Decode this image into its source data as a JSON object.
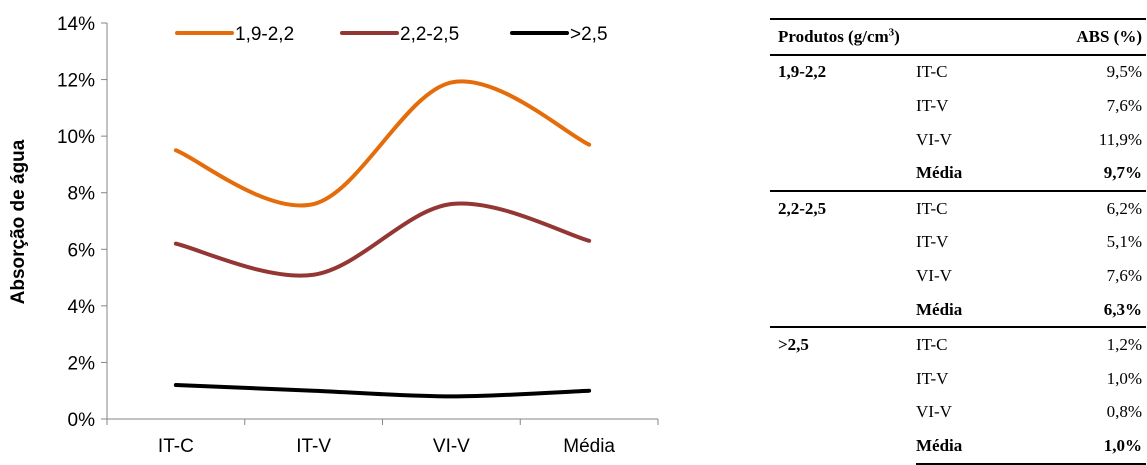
{
  "chart_data": {
    "type": "line",
    "categories": [
      "IT-C",
      "IT-V",
      "VI-V",
      "Média"
    ],
    "ylabel": "Absorção de água",
    "ylim": [
      0,
      14
    ],
    "yticks": [
      "0%",
      "2%",
      "4%",
      "6%",
      "8%",
      "10%",
      "12%",
      "14%"
    ],
    "ytick_values": [
      0,
      2,
      4,
      6,
      8,
      10,
      12,
      14
    ],
    "legend_position": "top",
    "grid": false,
    "smooth": true,
    "series": [
      {
        "name": "1,9-2,2",
        "values": [
          9.5,
          7.6,
          11.9,
          9.7
        ],
        "color": "#E46C0A"
      },
      {
        "name": "2,2-2,5",
        "values": [
          6.2,
          5.1,
          7.6,
          6.3
        ],
        "color": "#943634"
      },
      {
        "name": ">2,5",
        "values": [
          1.2,
          1.0,
          0.8,
          1.0
        ],
        "color": "#000000"
      }
    ]
  },
  "table": {
    "header_produtos": "Produtos (g/cm",
    "header_sup": "3",
    "header_close": ")",
    "header_abs": "ABS (%)",
    "groups": [
      {
        "label": "1,9-2,2",
        "rows": [
          {
            "item": "IT-C",
            "value": "9,5%"
          },
          {
            "item": "IT-V",
            "value": "7,6%"
          },
          {
            "item": "VI-V",
            "value": "11,9%"
          },
          {
            "item": "Média",
            "value": "9,7%"
          }
        ]
      },
      {
        "label": "2,2-2,5",
        "rows": [
          {
            "item": "IT-C",
            "value": "6,2%"
          },
          {
            "item": "IT-V",
            "value": "5,1%"
          },
          {
            "item": "VI-V",
            "value": "7,6%"
          },
          {
            "item": "Média",
            "value": "6,3%"
          }
        ]
      },
      {
        "label": ">2,5",
        "rows": [
          {
            "item": "IT-C",
            "value": "1,2%"
          },
          {
            "item": "IT-V",
            "value": "1,0%"
          },
          {
            "item": "VI-V",
            "value": "0,8%"
          },
          {
            "item": "Média",
            "value": "1,0%"
          }
        ]
      }
    ]
  }
}
